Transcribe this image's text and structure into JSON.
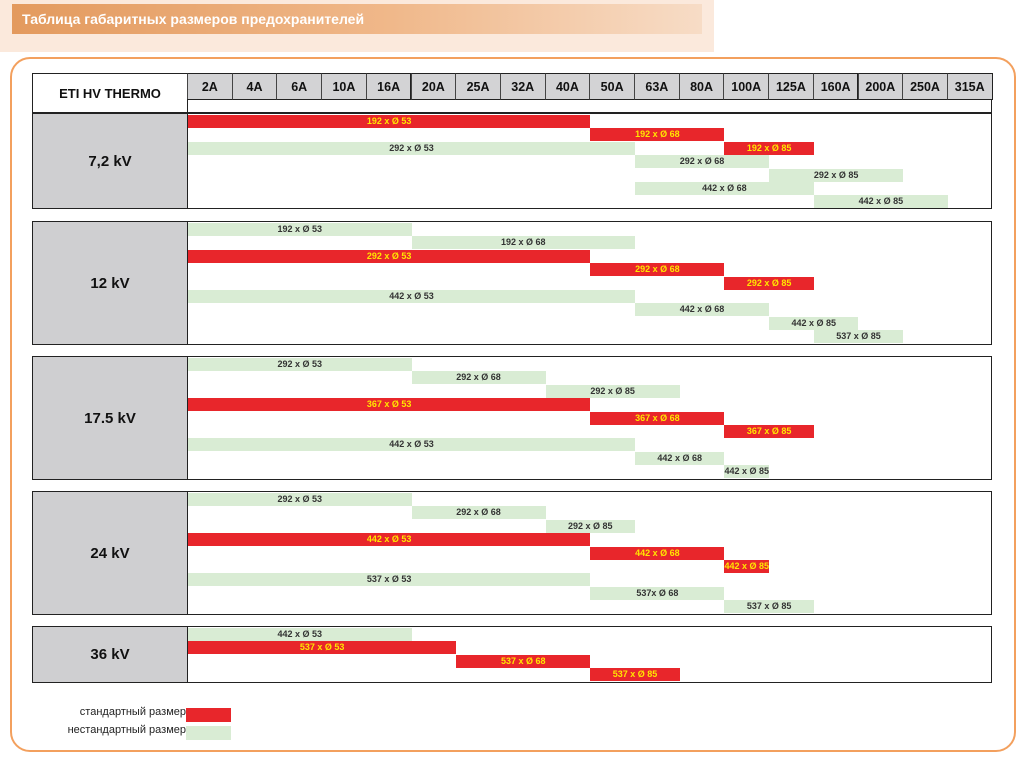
{
  "title": "Таблица габаритных размеров предохранителей",
  "header_label": "ETI HV THERMO",
  "amps": [
    "2A",
    "4A",
    "6A",
    "10A",
    "16A",
    "20A",
    "25A",
    "32A",
    "40A",
    "50A",
    "63A",
    "80A",
    "100A",
    "125A",
    "160A",
    "200A",
    "250A",
    "315A"
  ],
  "colors": {
    "standard": "#e8262b",
    "nonstandard": "#d9ecd4",
    "frame": "#f3a05e"
  },
  "legend": {
    "standard": "стандартный размер",
    "nonstandard": "нестандартный размер"
  },
  "sections": [
    {
      "voltage": "7,2 kV",
      "rows": [
        {
          "label": "192 x Ø 53",
          "from": "2A",
          "to": "40A",
          "type": "standard"
        },
        {
          "label": "192 x Ø 68",
          "from": "50A",
          "to": "80A",
          "type": "standard"
        },
        {
          "label": "192 x Ø 85",
          "from": "100A",
          "to": "125A",
          "type": "standard"
        },
        {
          "label": "292 x Ø 53",
          "from": "2A",
          "to": "50A",
          "type": "nonstandard"
        },
        {
          "label": "292 x Ø 68",
          "from": "63A",
          "to": "100A",
          "type": "nonstandard"
        },
        {
          "label": "292 x Ø 85",
          "from": "125A",
          "to": "200A",
          "type": "nonstandard"
        },
        {
          "label": "442 x Ø 68",
          "from": "63A",
          "to": "125A",
          "type": "nonstandard"
        },
        {
          "label": "442 x Ø 85",
          "from": "160A",
          "to": "250A",
          "type": "nonstandard"
        }
      ]
    },
    {
      "voltage": "12 kV",
      "rows": [
        {
          "label": "192 x Ø 53",
          "from": "2A",
          "to": "16A",
          "type": "nonstandard"
        },
        {
          "label": "192 x Ø 68",
          "from": "20A",
          "to": "50A",
          "type": "nonstandard"
        },
        {
          "label": "292 x Ø 53",
          "from": "2A",
          "to": "40A",
          "type": "standard"
        },
        {
          "label": "292 x Ø 68",
          "from": "50A",
          "to": "80A",
          "type": "standard"
        },
        {
          "label": "292 x Ø 85",
          "from": "100A",
          "to": "125A",
          "type": "standard"
        },
        {
          "label": "442 x Ø 53",
          "from": "2A",
          "to": "50A",
          "type": "nonstandard"
        },
        {
          "label": "442 x Ø 68",
          "from": "63A",
          "to": "100A",
          "type": "nonstandard"
        },
        {
          "label": "442 x Ø 85",
          "from": "125A",
          "to": "160A",
          "type": "nonstandard"
        },
        {
          "label": "537 x Ø 85",
          "from": "160A",
          "to": "200A",
          "type": "nonstandard"
        }
      ]
    },
    {
      "voltage": "17.5 kV",
      "rows": [
        {
          "label": "292 x Ø 53",
          "from": "2A",
          "to": "16A",
          "type": "nonstandard"
        },
        {
          "label": "292 x Ø 68",
          "from": "20A",
          "to": "32A",
          "type": "nonstandard"
        },
        {
          "label": "292 x Ø 85",
          "from": "40A",
          "to": "63A",
          "type": "nonstandard"
        },
        {
          "label": "367 x Ø 53",
          "from": "2A",
          "to": "40A",
          "type": "standard"
        },
        {
          "label": "367 x Ø 68",
          "from": "50A",
          "to": "80A",
          "type": "standard"
        },
        {
          "label": "367 x Ø 85",
          "from": "100A",
          "to": "125A",
          "type": "standard"
        },
        {
          "label": "442 x Ø 53",
          "from": "2A",
          "to": "50A",
          "type": "nonstandard"
        },
        {
          "label": "442 x Ø 68",
          "from": "63A",
          "to": "80A",
          "type": "nonstandard"
        },
        {
          "label": "442 x Ø 85",
          "from": "100A",
          "to": "100A",
          "type": "nonstandard"
        }
      ]
    },
    {
      "voltage": "24 kV",
      "rows": [
        {
          "label": "292 x Ø 53",
          "from": "2A",
          "to": "16A",
          "type": "nonstandard"
        },
        {
          "label": "292 x Ø 68",
          "from": "20A",
          "to": "32A",
          "type": "nonstandard"
        },
        {
          "label": "292 x Ø 85",
          "from": "40A",
          "to": "50A",
          "type": "nonstandard"
        },
        {
          "label": "442 x Ø 53",
          "from": "2A",
          "to": "40A",
          "type": "standard"
        },
        {
          "label": "442 x Ø 68",
          "from": "50A",
          "to": "80A",
          "type": "standard"
        },
        {
          "label": "442 x Ø 85",
          "from": "100A",
          "to": "100A",
          "type": "standard"
        },
        {
          "label": "537 x Ø 53",
          "from": "2A",
          "to": "40A",
          "type": "nonstandard"
        },
        {
          "label": "537x Ø 68",
          "from": "50A",
          "to": "80A",
          "type": "nonstandard"
        },
        {
          "label": "537 x Ø 85",
          "from": "100A",
          "to": "125A",
          "type": "nonstandard"
        }
      ]
    },
    {
      "voltage": "36 kV",
      "rows": [
        {
          "label": "442 x Ø 53",
          "from": "2A",
          "to": "16A",
          "type": "nonstandard"
        },
        {
          "label": "537 x Ø 53",
          "from": "2A",
          "to": "20A",
          "type": "standard"
        },
        {
          "label": "537 x Ø 68",
          "from": "25A",
          "to": "40A",
          "type": "standard"
        },
        {
          "label": "537 x Ø 85",
          "from": "50A",
          "to": "63A",
          "type": "standard"
        }
      ]
    }
  ]
}
